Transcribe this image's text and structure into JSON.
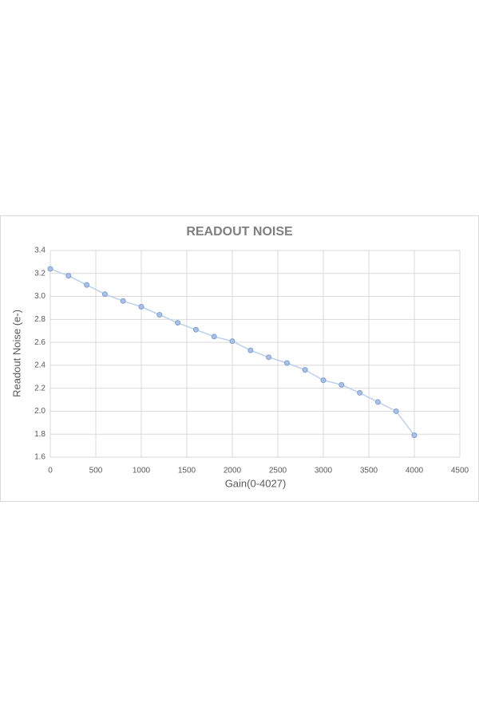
{
  "chart_data": {
    "type": "line",
    "title": "READOUT NOISE",
    "x_label": "Gain(0-4027)",
    "y_label": "Readout Noise (e-)",
    "x": [
      0,
      200,
      400,
      600,
      800,
      1000,
      1200,
      1400,
      1600,
      1800,
      2000,
      2200,
      2400,
      2600,
      2800,
      3000,
      3200,
      3400,
      3600,
      3800,
      4000
    ],
    "series": [
      {
        "color": "#7f9fd0",
        "values": [
          3.24,
          3.18,
          3.1,
          3.02,
          2.96,
          2.91,
          2.84,
          2.77,
          2.71,
          2.65,
          2.61,
          2.53,
          2.47,
          2.42,
          2.36,
          2.27,
          2.23,
          2.16,
          2.08,
          2.0,
          1.79
        ]
      }
    ],
    "xlim": [
      0,
      4500
    ],
    "xticks": [
      0,
      500,
      1000,
      1500,
      2000,
      2500,
      3000,
      3500,
      4000,
      4500
    ],
    "ylim": [
      1.6,
      3.4
    ],
    "yticks": [
      1.6,
      1.8,
      {
        "value": 2,
        "label": "2.0"
      },
      2.2,
      2.4,
      2.6,
      2.8,
      {
        "value": 3,
        "label": "3.0"
      },
      3.2,
      3.4
    ],
    "grid": true
  }
}
